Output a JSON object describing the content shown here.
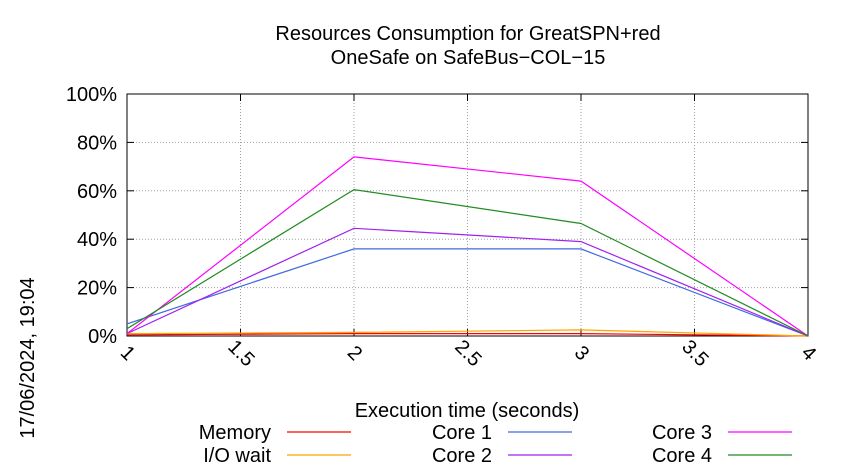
{
  "chart_data": {
    "type": "line",
    "title_line1": "Resources Consumption for GreatSPN+red",
    "title_line2": "OneSafe on SafeBus−COL−15",
    "xlabel": "Execution time (seconds)",
    "ylabel": "",
    "timestamp": "17/06/2024, 19:04",
    "xlim": [
      1,
      4
    ],
    "ylim": [
      0,
      100
    ],
    "x_ticks": [
      {
        "value": 1,
        "label": "1"
      },
      {
        "value": 1.5,
        "label": "1.5"
      },
      {
        "value": 2,
        "label": "2"
      },
      {
        "value": 2.5,
        "label": "2.5"
      },
      {
        "value": 3,
        "label": "3"
      },
      {
        "value": 3.5,
        "label": "3.5"
      },
      {
        "value": 4,
        "label": "4"
      }
    ],
    "y_ticks": [
      {
        "value": 0,
        "label": "0%"
      },
      {
        "value": 20,
        "label": "20%"
      },
      {
        "value": 40,
        "label": "40%"
      },
      {
        "value": 60,
        "label": "60%"
      },
      {
        "value": 80,
        "label": "80%"
      },
      {
        "value": 100,
        "label": "100%"
      }
    ],
    "grid": true,
    "legend_position": "bottom",
    "x": [
      1,
      2,
      3,
      4
    ],
    "series": [
      {
        "name": "Memory",
        "color": "#ff0000",
        "values": [
          0.5,
          1.0,
          1.0,
          0
        ]
      },
      {
        "name": "I/O wait",
        "color": "#ffa500",
        "values": [
          1.0,
          1.5,
          2.5,
          0
        ]
      },
      {
        "name": "Core 1",
        "color": "#4169e1",
        "values": [
          5,
          36,
          36,
          0
        ]
      },
      {
        "name": "Core 2",
        "color": "#a020f0",
        "values": [
          1,
          44.5,
          39,
          0
        ]
      },
      {
        "name": "Core 3",
        "color": "#ff00ff",
        "values": [
          1,
          74,
          64,
          0
        ]
      },
      {
        "name": "Core 4",
        "color": "#228b22",
        "values": [
          3,
          60.5,
          46.5,
          0
        ]
      }
    ]
  }
}
